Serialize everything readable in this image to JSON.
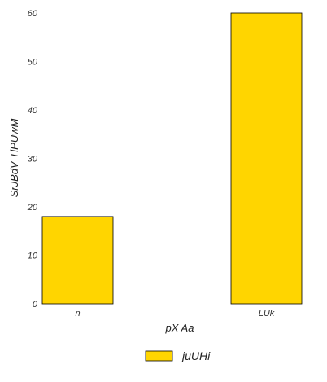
{
  "chart_data": {
    "type": "bar",
    "title": "",
    "categories": [
      "n",
      "LUk"
    ],
    "series": [
      {
        "name": "juUHi",
        "values": [
          18,
          60
        ],
        "color": "#FFD500"
      }
    ],
    "xlabel": "pX Aa",
    "ylabel": "SrJBdV TlPUwM",
    "ylim": [
      0,
      60
    ],
    "yticks": [
      0,
      10,
      20,
      30,
      40,
      50,
      60
    ],
    "grid": false,
    "legend": "bottom-center"
  }
}
